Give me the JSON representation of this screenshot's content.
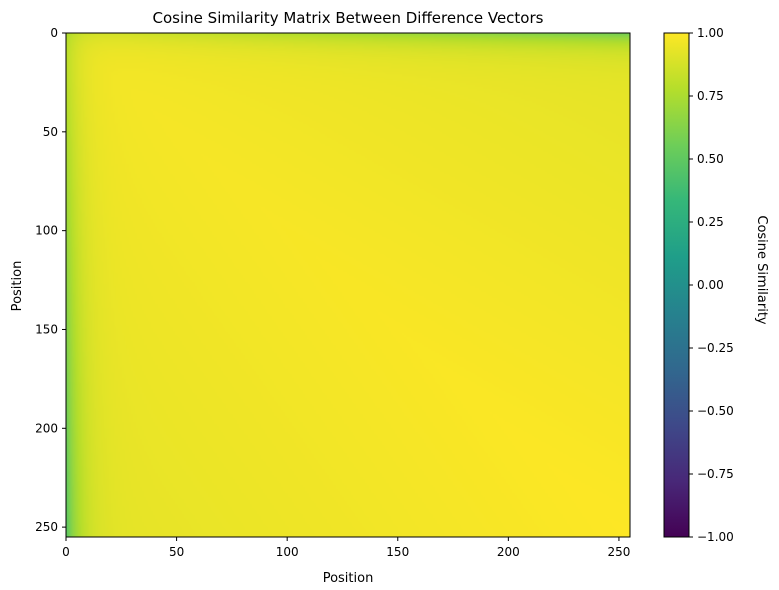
{
  "chart_data": {
    "type": "heatmap",
    "title": "Cosine Similarity Matrix Between Difference Vectors",
    "xlabel": "Position",
    "ylabel": "Position",
    "colorbar_label": "Cosine Similarity",
    "colormap": "viridis",
    "grid": false,
    "matrix_size": 256,
    "xlim": [
      0,
      255
    ],
    "ylim": [
      255,
      0
    ],
    "x_ticks": [
      0,
      50,
      100,
      150,
      200,
      250
    ],
    "y_ticks": [
      0,
      50,
      100,
      150,
      200,
      250
    ],
    "colorbar_ticks": [
      "1.00",
      "0.75",
      "0.50",
      "0.25",
      "0.00",
      "−0.25",
      "−0.50",
      "−0.75",
      "−1.00"
    ],
    "value_range": [
      -1.0,
      1.0
    ],
    "observations": {
      "bulk_value": 0.97,
      "min_value_at_corners": 0.55,
      "low_rows_near": 0,
      "low_cols_near": 0
    }
  },
  "colors": {
    "viridis": [
      "#440154",
      "#482878",
      "#3e4989",
      "#31688e",
      "#26828e",
      "#1f9e89",
      "#35b779",
      "#6ece58",
      "#b5de2b",
      "#fde725"
    ]
  }
}
